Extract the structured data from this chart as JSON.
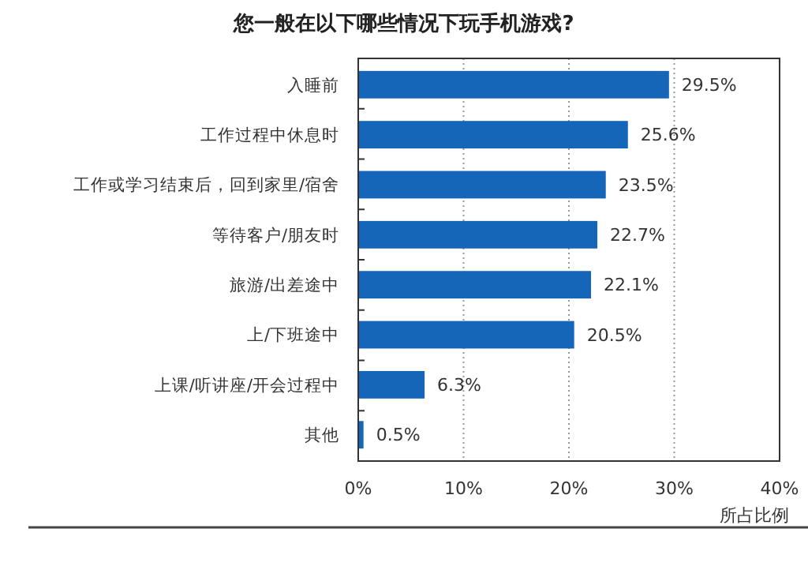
{
  "chart_data": {
    "type": "bar",
    "orientation": "horizontal",
    "title": "您一般在以下哪些情况下玩手机游戏?",
    "xlabel": "所占比例",
    "categories": [
      "入睡前",
      "工作过程中休息时",
      "工作或学习结束后，回到家里/宿舍",
      "等待客户/朋友时",
      "旅游/出差途中",
      "上/下班途中",
      "上课/听讲座/开会过程中",
      "其他"
    ],
    "values": [
      29.5,
      25.6,
      23.5,
      22.7,
      22.1,
      20.5,
      6.3,
      0.5
    ],
    "value_labels": [
      "29.5%",
      "25.6%",
      "23.5%",
      "22.7%",
      "22.1%",
      "20.5%",
      "6.3%",
      "0.5%"
    ],
    "color": "#1565b8",
    "xlim": [
      0,
      40
    ],
    "xticks": [
      {
        "value": 0,
        "label": "0%"
      },
      {
        "value": 10,
        "label": "10%"
      },
      {
        "value": 20,
        "label": "20%"
      },
      {
        "value": 30,
        "label": "30%"
      },
      {
        "value": 40,
        "label": "40%"
      }
    ],
    "grid": "x"
  }
}
